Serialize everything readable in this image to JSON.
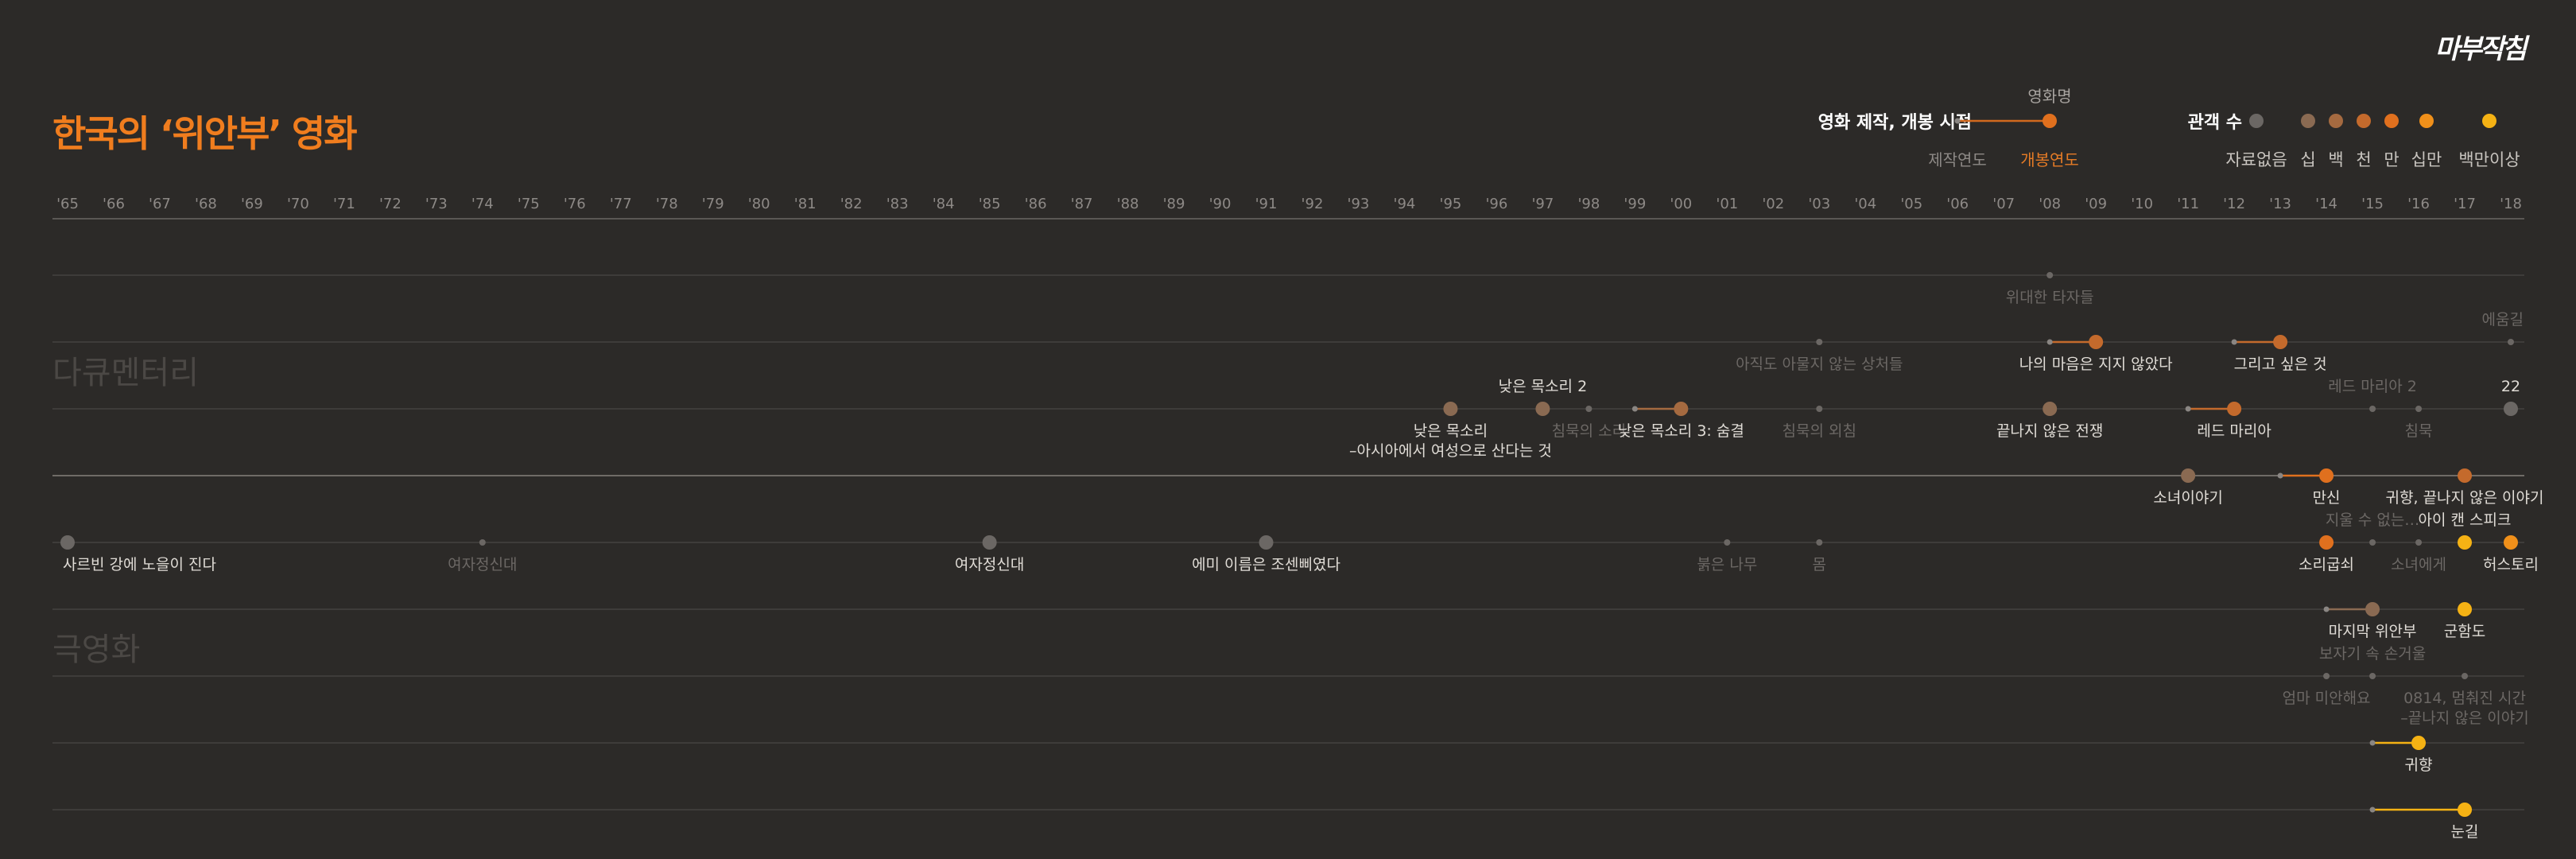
{
  "brand": "마부작침",
  "title": "한국의 ‘위안부’ 영화",
  "legend": {
    "timing_label": "영화 제작, 개봉 시점",
    "sample_title": "영화명",
    "production_label": "제작연도",
    "release_label": "개봉연도",
    "audience_label": "관객 수",
    "audience_levels": [
      {
        "label": "자료없음",
        "color": "#6b6764"
      },
      {
        "label": "십",
        "color": "#8a6a52"
      },
      {
        "label": "백",
        "color": "#a56a40"
      },
      {
        "label": "천",
        "color": "#c46a2c"
      },
      {
        "label": "만",
        "color": "#e0701e"
      },
      {
        "label": "십만",
        "color": "#f0901a"
      },
      {
        "label": "백만이상",
        "color": "#f5b214"
      }
    ]
  },
  "colors": {
    "background": "#2c2a28",
    "accent": "#f07d1e",
    "row_line": "#4a4744",
    "axis_text": "#8d8986",
    "label_dim": "#6c6865",
    "label_bright": "#e0dcd6"
  },
  "chart_data": {
    "type": "timeline",
    "x_axis": {
      "range": [
        1965,
        2018
      ],
      "tick_labels": [
        "'65",
        "'66",
        "'67",
        "'68",
        "'69",
        "'70",
        "'71",
        "'72",
        "'73",
        "'74",
        "'75",
        "'76",
        "'77",
        "'78",
        "'79",
        "'80",
        "'81",
        "'82",
        "'83",
        "'84",
        "'85",
        "'86",
        "'87",
        "'88",
        "'89",
        "'90",
        "'91",
        "'92",
        "'93",
        "'94",
        "'95",
        "'96",
        "'97",
        "'98",
        "'99",
        "'00",
        "'01",
        "'02",
        "'03",
        "'04",
        "'05",
        "'06",
        "'07",
        "'08",
        "'09",
        "'10",
        "'11",
        "'12",
        "'13",
        "'14",
        "'15",
        "'16",
        "'17",
        "'18"
      ]
    },
    "section_labels": [
      "다큐멘터리",
      "극영화"
    ],
    "films": [
      {
        "title": "위대한 타자들",
        "row": 0,
        "release": 2008,
        "audience": 0,
        "label": "below",
        "dim": true
      },
      {
        "title": "에움길",
        "row": 1,
        "release": 2018,
        "audience": 0,
        "label": "above",
        "dim": true,
        "align": "end"
      },
      {
        "title": "아직도 아물지 않는 상처들",
        "row": 1,
        "release": 2003,
        "audience": 0,
        "label": "below",
        "dim": true
      },
      {
        "title": "나의 마음은 지지 않았다",
        "row": 1,
        "production": 2008,
        "release": 2009,
        "audience": 3,
        "label": "below",
        "dim": false
      },
      {
        "title": "그리고 싶은 것",
        "row": 1,
        "production": 2012,
        "release": 2013,
        "audience": 3,
        "label": "below",
        "dim": false
      },
      {
        "title": "낮은 목소리 2",
        "row": 2,
        "release": 1997,
        "audience": 1,
        "label": "above",
        "dim": false
      },
      {
        "title": "낮은 목소리 – 아시아에서 여성으로 산다는 것",
        "row": 2,
        "release": 1995,
        "audience": 1,
        "label": "below",
        "dim": false
      },
      {
        "title": "침묵의 소리",
        "row": 2,
        "release": 1998,
        "audience": 0,
        "label": "below",
        "dim": true
      },
      {
        "title": "낮은 목소리 3: 숨결",
        "row": 2,
        "production": 1999,
        "release": 2000,
        "audience": 2,
        "label": "below",
        "dim": false
      },
      {
        "title": "침묵의 외침",
        "row": 2,
        "release": 2003,
        "audience": 0,
        "label": "below",
        "dim": true
      },
      {
        "title": "끝나지 않은 전쟁",
        "row": 2,
        "release": 2008,
        "audience": 1,
        "label": "below",
        "dim": false
      },
      {
        "title": "레드 마리아",
        "row": 2,
        "production": 2011,
        "release": 2012,
        "audience": 3,
        "label": "below",
        "dim": false
      },
      {
        "title": "레드 마리아 2",
        "row": 2,
        "release": 2015,
        "audience": 0,
        "label": "above",
        "dim": true
      },
      {
        "title": "침묵",
        "row": 2,
        "release": 2016,
        "audience": 0,
        "label": "below",
        "dim": true
      },
      {
        "title": "22",
        "row": 2,
        "release": 2018,
        "audience": 0,
        "label": "above",
        "dim": false
      },
      {
        "title": "소녀이야기",
        "row": 3,
        "release": 2011,
        "audience": 1,
        "label": "below",
        "dim": false
      },
      {
        "title": "만신",
        "row": 3,
        "production": 2013,
        "release": 2014,
        "audience": 4,
        "label": "below",
        "dim": false
      },
      {
        "title": "귀향, 끝나지 않은 이야기",
        "row": 3,
        "release": 2017,
        "audience": 3,
        "label": "below",
        "dim": false
      },
      {
        "title": "사르빈 강에 노을이 진다",
        "row": 4,
        "release": 1965,
        "audience": 0,
        "label": "below",
        "dim": false,
        "align": "start"
      },
      {
        "title": "여자정신대",
        "row": 4,
        "release": 1974,
        "audience": 0,
        "label": "below",
        "dim": true
      },
      {
        "title": "여자정신대",
        "row": 4,
        "release": 1985,
        "audience": 0,
        "label": "below",
        "dim": false
      },
      {
        "title": "에미 이름은 조센삐였다",
        "row": 4,
        "release": 1991,
        "audience": 0,
        "label": "below",
        "dim": false
      },
      {
        "title": "붉은 나무",
        "row": 4,
        "release": 2001,
        "audience": 0,
        "label": "below",
        "dim": true
      },
      {
        "title": "몸",
        "row": 4,
        "release": 2003,
        "audience": 0,
        "label": "below",
        "dim": true
      },
      {
        "title": "소리굽쇠",
        "row": 4,
        "release": 2014,
        "audience": 4,
        "label": "below",
        "dim": false
      },
      {
        "title": "지울 수 없는…",
        "row": 4,
        "release": 2015,
        "audience": 0,
        "label": "above",
        "dim": true
      },
      {
        "title": "소녀에게",
        "row": 4,
        "release": 2016,
        "audience": 0,
        "label": "below",
        "dim": true
      },
      {
        "title": "아이 캔 스피크",
        "row": 4,
        "release": 2017,
        "audience": 6,
        "label": "above",
        "dim": false
      },
      {
        "title": "허스토리",
        "row": 4,
        "release": 2018,
        "audience": 5,
        "label": "below",
        "dim": false
      },
      {
        "title": "마지막 위안부",
        "row": 5,
        "production": 2014,
        "release": 2015,
        "audience": 1,
        "label": "below",
        "dim": false
      },
      {
        "title": "군함도",
        "row": 5,
        "release": 2017,
        "audience": 6,
        "label": "below",
        "dim": false
      },
      {
        "title": "보자기 속 손거울",
        "row": 6,
        "release": 2015,
        "audience": 0,
        "label": "above",
        "dim": true
      },
      {
        "title": "엄마 미안해요",
        "row": 6,
        "release": 2014,
        "audience": 0,
        "label": "below",
        "dim": true
      },
      {
        "title": "0814, 멈춰진 시간 – 끝나지 않은 이야기",
        "row": 6,
        "release": 2017,
        "audience": 0,
        "label": "below",
        "dim": true
      },
      {
        "title": "귀향",
        "row": 7,
        "production": 2015,
        "release": 2016,
        "audience": 6,
        "label": "below",
        "dim": false
      },
      {
        "title": "눈길",
        "row": 8,
        "production": 2015,
        "release": 2017,
        "audience": 6,
        "label": "below",
        "dim": false
      }
    ]
  }
}
